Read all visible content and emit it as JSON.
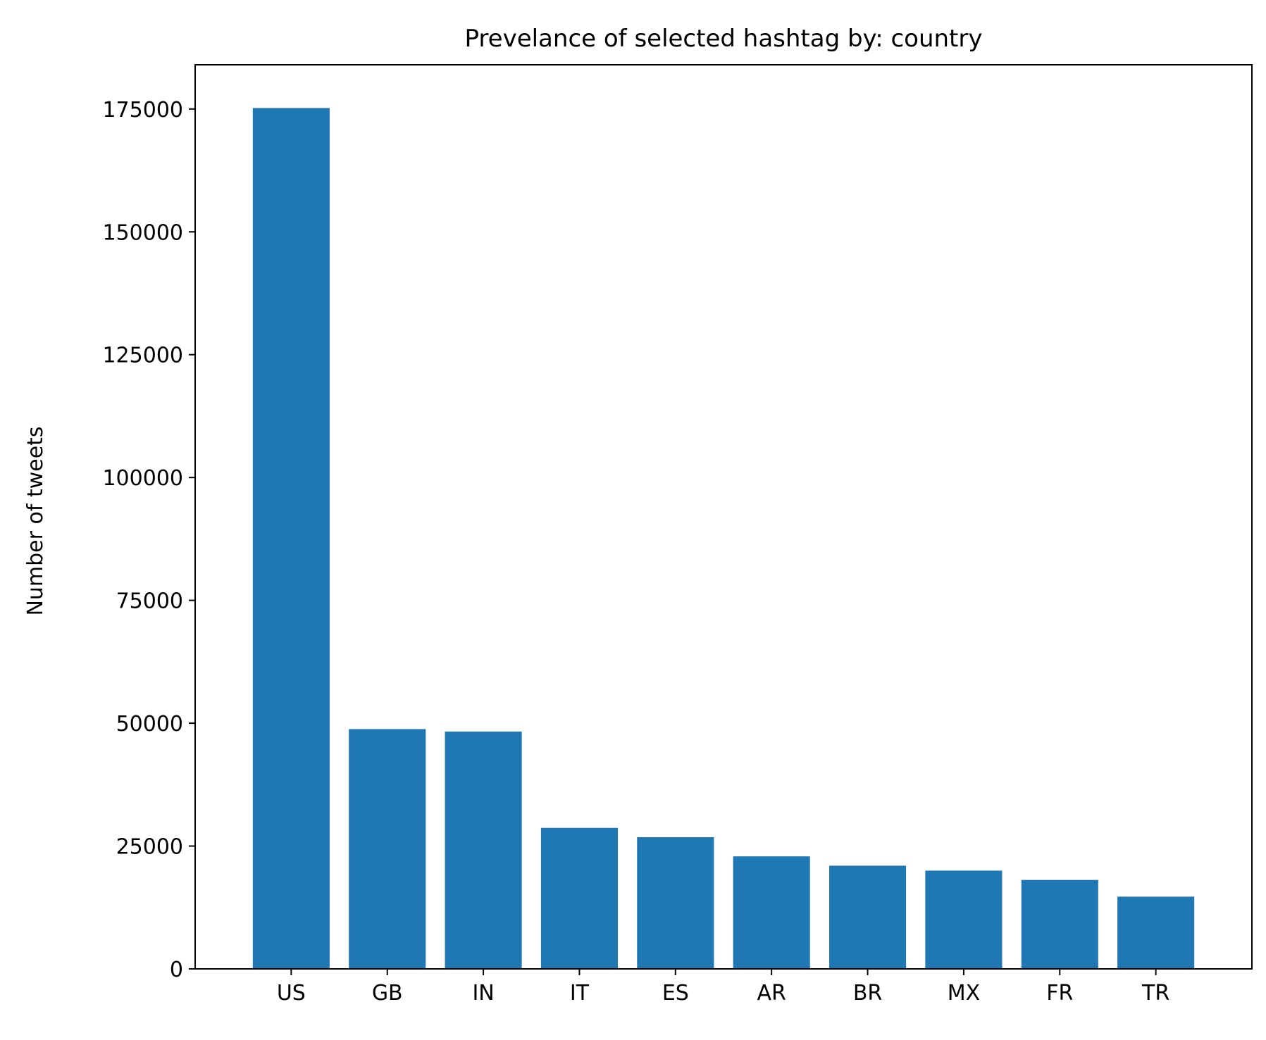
{
  "chart_data": {
    "type": "bar",
    "title": "Prevelance of selected hashtag by: country",
    "xlabel": "",
    "ylabel": "Number of tweets",
    "categories": [
      "US",
      "GB",
      "IN",
      "IT",
      "ES",
      "AR",
      "BR",
      "MX",
      "FR",
      "TR"
    ],
    "values": [
      175200,
      48800,
      48300,
      28700,
      26800,
      22900,
      21000,
      20000,
      18100,
      14700
    ],
    "yticks": [
      0,
      25000,
      50000,
      75000,
      100000,
      125000,
      150000,
      175000
    ],
    "ytick_labels": [
      "0",
      "25000",
      "50000",
      "75000",
      "100000",
      "125000",
      "150000",
      "175000"
    ],
    "ylim": [
      0,
      184000
    ],
    "grid": false,
    "legend": "none",
    "bar_color": "#1f77b4"
  }
}
